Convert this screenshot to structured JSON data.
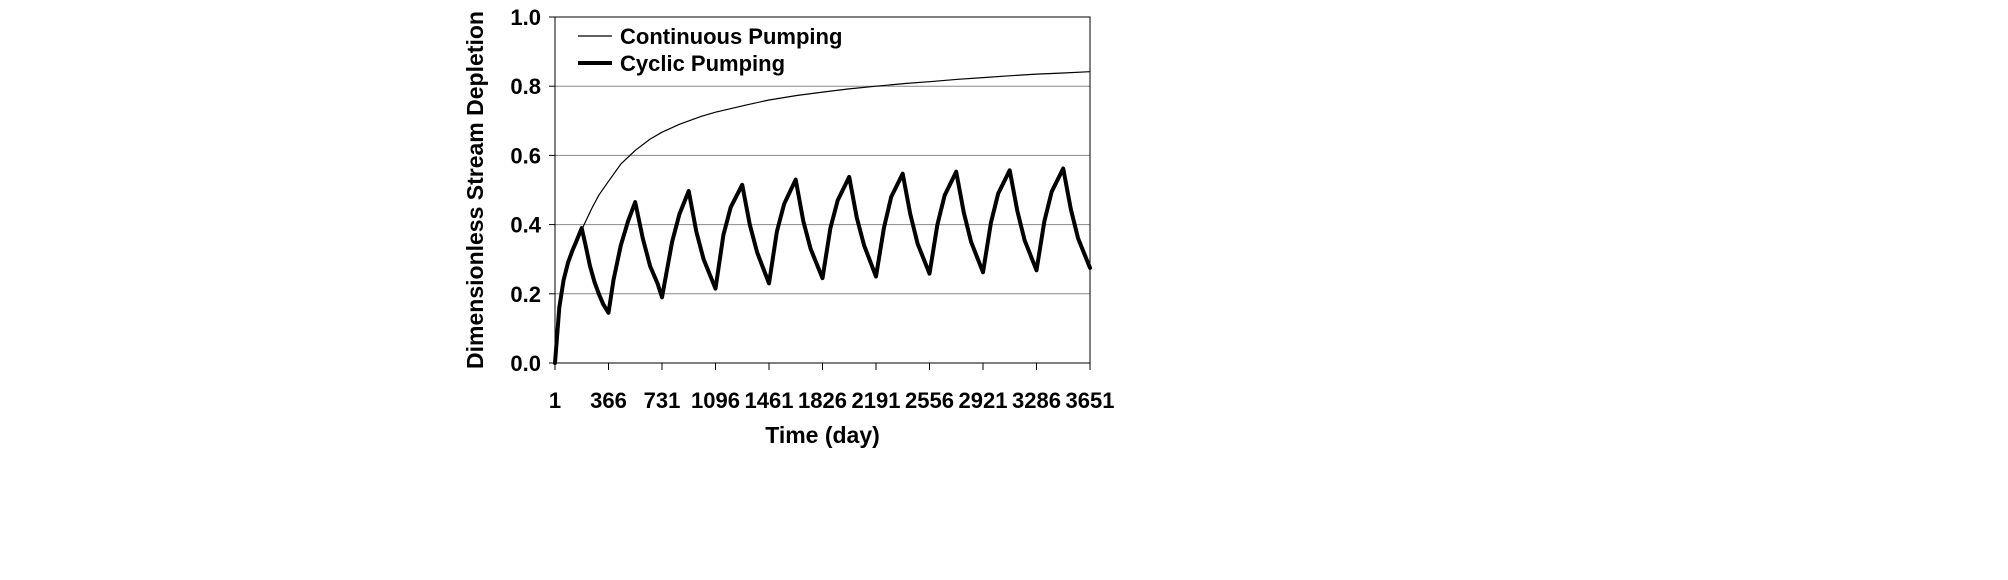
{
  "chart_data": {
    "type": "line",
    "title": "",
    "xlabel": "Time (day)",
    "ylabel": "Dimensionless Stream Depletion",
    "xlim": [
      1,
      3651
    ],
    "ylim": [
      0,
      1
    ],
    "x_ticks": [
      1,
      366,
      731,
      1096,
      1461,
      1826,
      2191,
      2556,
      2921,
      3286,
      3651
    ],
    "x_tick_labels": [
      "1",
      "366",
      "731",
      "1096",
      "1461",
      "1826",
      "2191",
      "2556",
      "2921",
      "3286",
      "3651"
    ],
    "y_ticks": [
      0.0,
      0.2,
      0.4,
      0.6,
      0.8,
      1.0
    ],
    "y_tick_labels": [
      "0.0",
      "0.2",
      "0.4",
      "0.6",
      "0.8",
      "1.0"
    ],
    "grid": "horizontal",
    "legend_position": "top-left",
    "series": [
      {
        "name": "Continuous Pumping",
        "style": "thin",
        "x": [
          1,
          30,
          60,
          90,
          120,
          150,
          183,
          250,
          300,
          366,
          450,
          550,
          650,
          731,
          850,
          1000,
          1096,
          1300,
          1461,
          1650,
          1826,
          2000,
          2191,
          2400,
          2556,
          2750,
          2921,
          3100,
          3286,
          3450,
          3651
        ],
        "y": [
          0.0,
          0.16,
          0.24,
          0.29,
          0.325,
          0.355,
          0.385,
          0.445,
          0.485,
          0.525,
          0.575,
          0.615,
          0.647,
          0.667,
          0.69,
          0.713,
          0.725,
          0.745,
          0.76,
          0.773,
          0.783,
          0.792,
          0.8,
          0.808,
          0.813,
          0.82,
          0.825,
          0.83,
          0.835,
          0.838,
          0.842
        ]
      },
      {
        "name": "Cyclic Pumping",
        "style": "thick",
        "x": [
          1,
          30,
          60,
          90,
          120,
          150,
          183,
          210,
          240,
          270,
          300,
          330,
          366,
          400,
          450,
          500,
          548,
          600,
          650,
          700,
          731,
          800,
          850,
          913,
          965,
          1015,
          1096,
          1150,
          1200,
          1278,
          1330,
          1380,
          1461,
          1515,
          1565,
          1643,
          1695,
          1745,
          1826,
          1880,
          1930,
          2008,
          2060,
          2110,
          2191,
          2245,
          2295,
          2373,
          2425,
          2475,
          2556,
          2610,
          2660,
          2738,
          2790,
          2840,
          2921,
          2975,
          3025,
          3103,
          3155,
          3205,
          3286,
          3340,
          3390,
          3468,
          3520,
          3570,
          3651
        ],
        "y": [
          0.0,
          0.16,
          0.24,
          0.29,
          0.325,
          0.355,
          0.39,
          0.34,
          0.28,
          0.235,
          0.2,
          0.17,
          0.145,
          0.24,
          0.34,
          0.41,
          0.465,
          0.36,
          0.28,
          0.23,
          0.19,
          0.35,
          0.43,
          0.497,
          0.38,
          0.3,
          0.215,
          0.37,
          0.45,
          0.515,
          0.4,
          0.32,
          0.23,
          0.38,
          0.46,
          0.53,
          0.41,
          0.33,
          0.245,
          0.39,
          0.47,
          0.538,
          0.42,
          0.34,
          0.25,
          0.39,
          0.48,
          0.547,
          0.43,
          0.345,
          0.258,
          0.4,
          0.485,
          0.553,
          0.435,
          0.35,
          0.262,
          0.405,
          0.49,
          0.557,
          0.44,
          0.355,
          0.268,
          0.41,
          0.495,
          0.562,
          0.445,
          0.36,
          0.275
        ]
      }
    ]
  }
}
